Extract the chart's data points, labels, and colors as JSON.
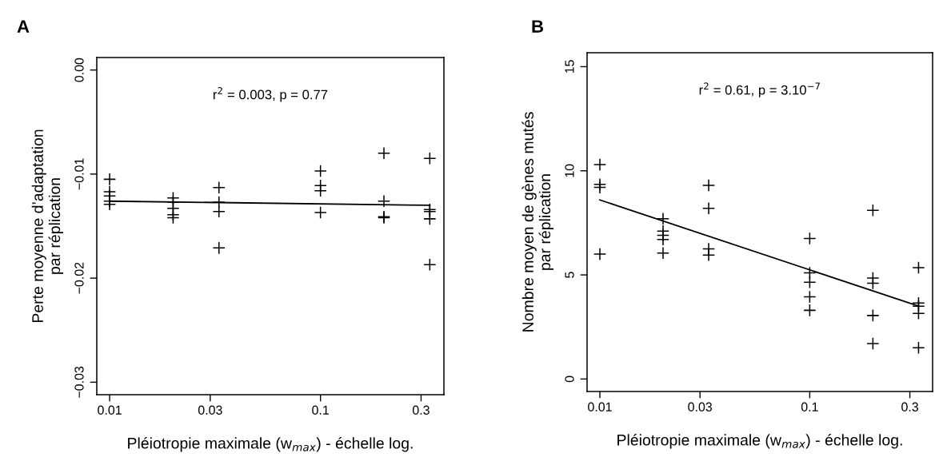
{
  "chart_data": [
    {
      "type": "scatter",
      "title": "A",
      "xlabel": "Pléiotropie maximale (w$_{max}$) - échelle log.",
      "ylabel": "Perte moyenne d’adaptation\npar réplication",
      "log": "x",
      "grid": false,
      "marker": "cross",
      "xlim": [
        0.00869,
        0.385
      ],
      "ylim": [
        -0.0312,
        0.0012
      ],
      "xticks": [
        0.01,
        0.03,
        0.1,
        0.3
      ],
      "yticks": [
        {
          "value": 0,
          "label": "0.00"
        },
        {
          "value": -0.01,
          "label": "−0.01"
        },
        {
          "value": -0.02,
          "label": "−0.02"
        },
        {
          "value": -0.03,
          "label": "−0.03"
        }
      ],
      "annotations": [
        "r$^{2}$ = 0.003, p = 0.77"
      ],
      "series": [
        {
          "color": "#000000",
          "x": [
            0.01,
            0.01,
            0.01,
            0.01,
            0.01,
            0.02,
            0.02,
            0.02,
            0.02,
            0.02,
            0.033,
            0.033,
            0.033,
            0.033,
            0.1,
            0.1,
            0.1,
            0.1,
            0.2,
            0.2,
            0.2,
            0.2,
            0.33,
            0.33,
            0.33,
            0.33,
            0.33
          ],
          "values": [
            -0.0105,
            -0.0117,
            -0.0121,
            -0.0126,
            -0.0129,
            -0.0123,
            -0.0127,
            -0.0133,
            -0.0139,
            -0.0142,
            -0.0113,
            -0.0127,
            -0.0136,
            -0.0171,
            -0.0097,
            -0.0111,
            -0.0116,
            -0.0137,
            -0.008,
            -0.0126,
            -0.0141,
            -0.0142,
            -0.0085,
            -0.0134,
            -0.0136,
            -0.0143,
            -0.0187
          ]
        },
        {
          "type": "line",
          "color": "#000000",
          "marker": "none",
          "x": [
            0.01,
            0.33
          ],
          "values": [
            -0.0126,
            -0.013
          ]
        }
      ]
    },
    {
      "type": "scatter",
      "title": "B",
      "xlabel": "Pléiotropie maximale (w$_{max}$) - échelle log.",
      "ylabel": "Nombre moyen de gènes mutés\npar réplication",
      "log": "x",
      "grid": false,
      "marker": "cross",
      "xlim": [
        0.00869,
        0.385
      ],
      "ylim": [
        -0.6,
        15.67
      ],
      "xticks": [
        0.01,
        0.03,
        0.1,
        0.3
      ],
      "yticks": [
        0,
        5,
        10,
        15
      ],
      "annotations": [
        "r$^{2}$ = 0.61, p = 3.10$^{−7}$"
      ],
      "series": [
        {
          "color": "#000000",
          "x": [
            0.01,
            0.01,
            0.01,
            0.01,
            0.02,
            0.02,
            0.02,
            0.02,
            0.02,
            0.033,
            0.033,
            0.033,
            0.033,
            0.1,
            0.1,
            0.1,
            0.1,
            0.1,
            0.2,
            0.2,
            0.2,
            0.2,
            0.2,
            0.33,
            0.33,
            0.33,
            0.33,
            0.33
          ],
          "values": [
            10.3,
            9.35,
            9.2,
            6.0,
            7.7,
            7.1,
            6.9,
            6.7,
            6.05,
            9.3,
            8.2,
            6.25,
            5.95,
            6.75,
            5.1,
            4.65,
            3.95,
            3.3,
            8.1,
            4.85,
            4.6,
            3.05,
            1.7,
            5.35,
            3.65,
            3.5,
            3.15,
            1.5
          ]
        },
        {
          "type": "line",
          "color": "#000000",
          "marker": "none",
          "x": [
            0.01,
            0.33
          ],
          "values": [
            8.6,
            3.5
          ]
        }
      ]
    }
  ]
}
